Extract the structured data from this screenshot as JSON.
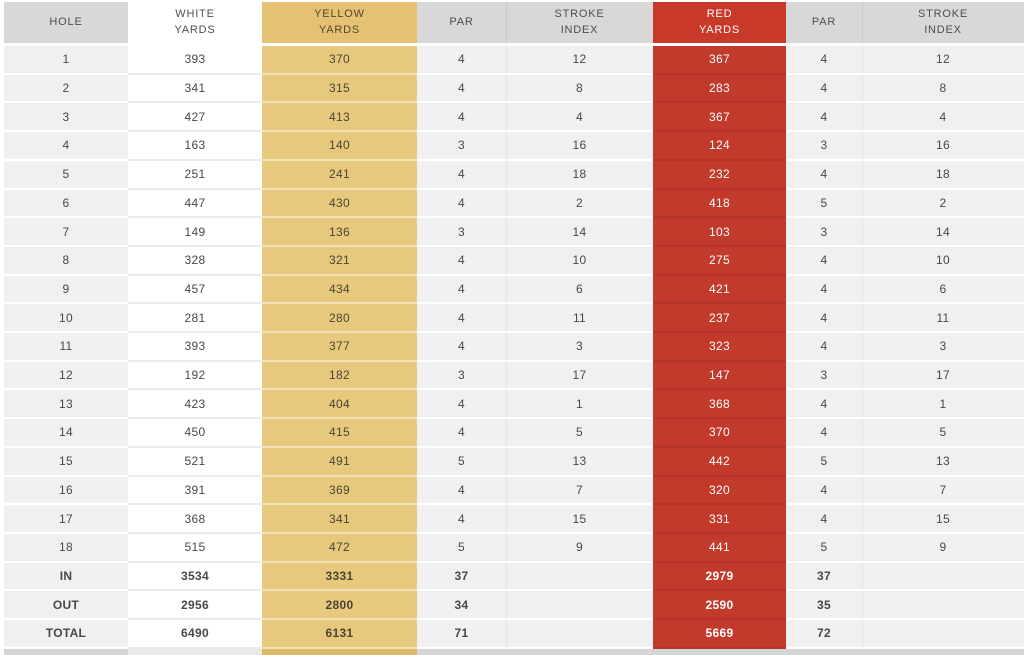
{
  "colors": {
    "header_gray": "#d8d8d8",
    "cell_gray": "#f1f0f0",
    "yellow_header": "#e4c173",
    "yellow_cell": "#e7c97e",
    "red_header": "#c8392a",
    "red_cell": "#c23a2b",
    "text": "#484848",
    "red_text": "#ffffff"
  },
  "table": {
    "columns": [
      {
        "key": "hole",
        "label": "HOLE",
        "bg": "gray"
      },
      {
        "key": "white",
        "label": "WHITE\nYARDS",
        "bg": "white"
      },
      {
        "key": "yellow",
        "label": "YELLOW\nYARDS",
        "bg": "yellow"
      },
      {
        "key": "par1",
        "label": "PAR",
        "bg": "gray"
      },
      {
        "key": "si1",
        "label": "STROKE\nINDEX",
        "bg": "gray",
        "divider": true
      },
      {
        "key": "red",
        "label": "RED\nYARDS",
        "bg": "red"
      },
      {
        "key": "par2",
        "label": "PAR",
        "bg": "gray"
      },
      {
        "key": "si2",
        "label": "STROKE\nINDEX",
        "bg": "gray",
        "divider": true
      }
    ]
  },
  "chart_data": {
    "type": "table",
    "title": "Golf course scorecard",
    "columns": [
      "HOLE",
      "WHITE YARDS",
      "YELLOW YARDS",
      "PAR",
      "STROKE INDEX",
      "RED YARDS",
      "PAR",
      "STROKE INDEX"
    ],
    "rows": [
      [
        "1",
        "393",
        "370",
        "4",
        "12",
        "367",
        "4",
        "12"
      ],
      [
        "2",
        "341",
        "315",
        "4",
        "8",
        "283",
        "4",
        "8"
      ],
      [
        "3",
        "427",
        "413",
        "4",
        "4",
        "367",
        "4",
        "4"
      ],
      [
        "4",
        "163",
        "140",
        "3",
        "16",
        "124",
        "3",
        "16"
      ],
      [
        "5",
        "251",
        "241",
        "4",
        "18",
        "232",
        "4",
        "18"
      ],
      [
        "6",
        "447",
        "430",
        "4",
        "2",
        "418",
        "5",
        "2"
      ],
      [
        "7",
        "149",
        "136",
        "3",
        "14",
        "103",
        "3",
        "14"
      ],
      [
        "8",
        "328",
        "321",
        "4",
        "10",
        "275",
        "4",
        "10"
      ],
      [
        "9",
        "457",
        "434",
        "4",
        "6",
        "421",
        "4",
        "6"
      ],
      [
        "10",
        "281",
        "280",
        "4",
        "11",
        "237",
        "4",
        "11"
      ],
      [
        "11",
        "393",
        "377",
        "4",
        "3",
        "323",
        "4",
        "3"
      ],
      [
        "12",
        "192",
        "182",
        "3",
        "17",
        "147",
        "3",
        "17"
      ],
      [
        "13",
        "423",
        "404",
        "4",
        "1",
        "368",
        "4",
        "1"
      ],
      [
        "14",
        "450",
        "415",
        "4",
        "5",
        "370",
        "4",
        "5"
      ],
      [
        "15",
        "521",
        "491",
        "5",
        "13",
        "442",
        "5",
        "13"
      ],
      [
        "16",
        "391",
        "369",
        "4",
        "7",
        "320",
        "4",
        "7"
      ],
      [
        "17",
        "368",
        "341",
        "4",
        "15",
        "331",
        "4",
        "15"
      ],
      [
        "18",
        "515",
        "472",
        "5",
        "9",
        "441",
        "5",
        "9"
      ]
    ],
    "summary_rows": [
      [
        "IN",
        "3534",
        "3331",
        "37",
        "",
        "2979",
        "37",
        ""
      ],
      [
        "OUT",
        "2956",
        "2800",
        "34",
        "",
        "2590",
        "35",
        ""
      ],
      [
        "TOTAL",
        "6490",
        "6131",
        "71",
        "",
        "5669",
        "72",
        ""
      ]
    ]
  }
}
